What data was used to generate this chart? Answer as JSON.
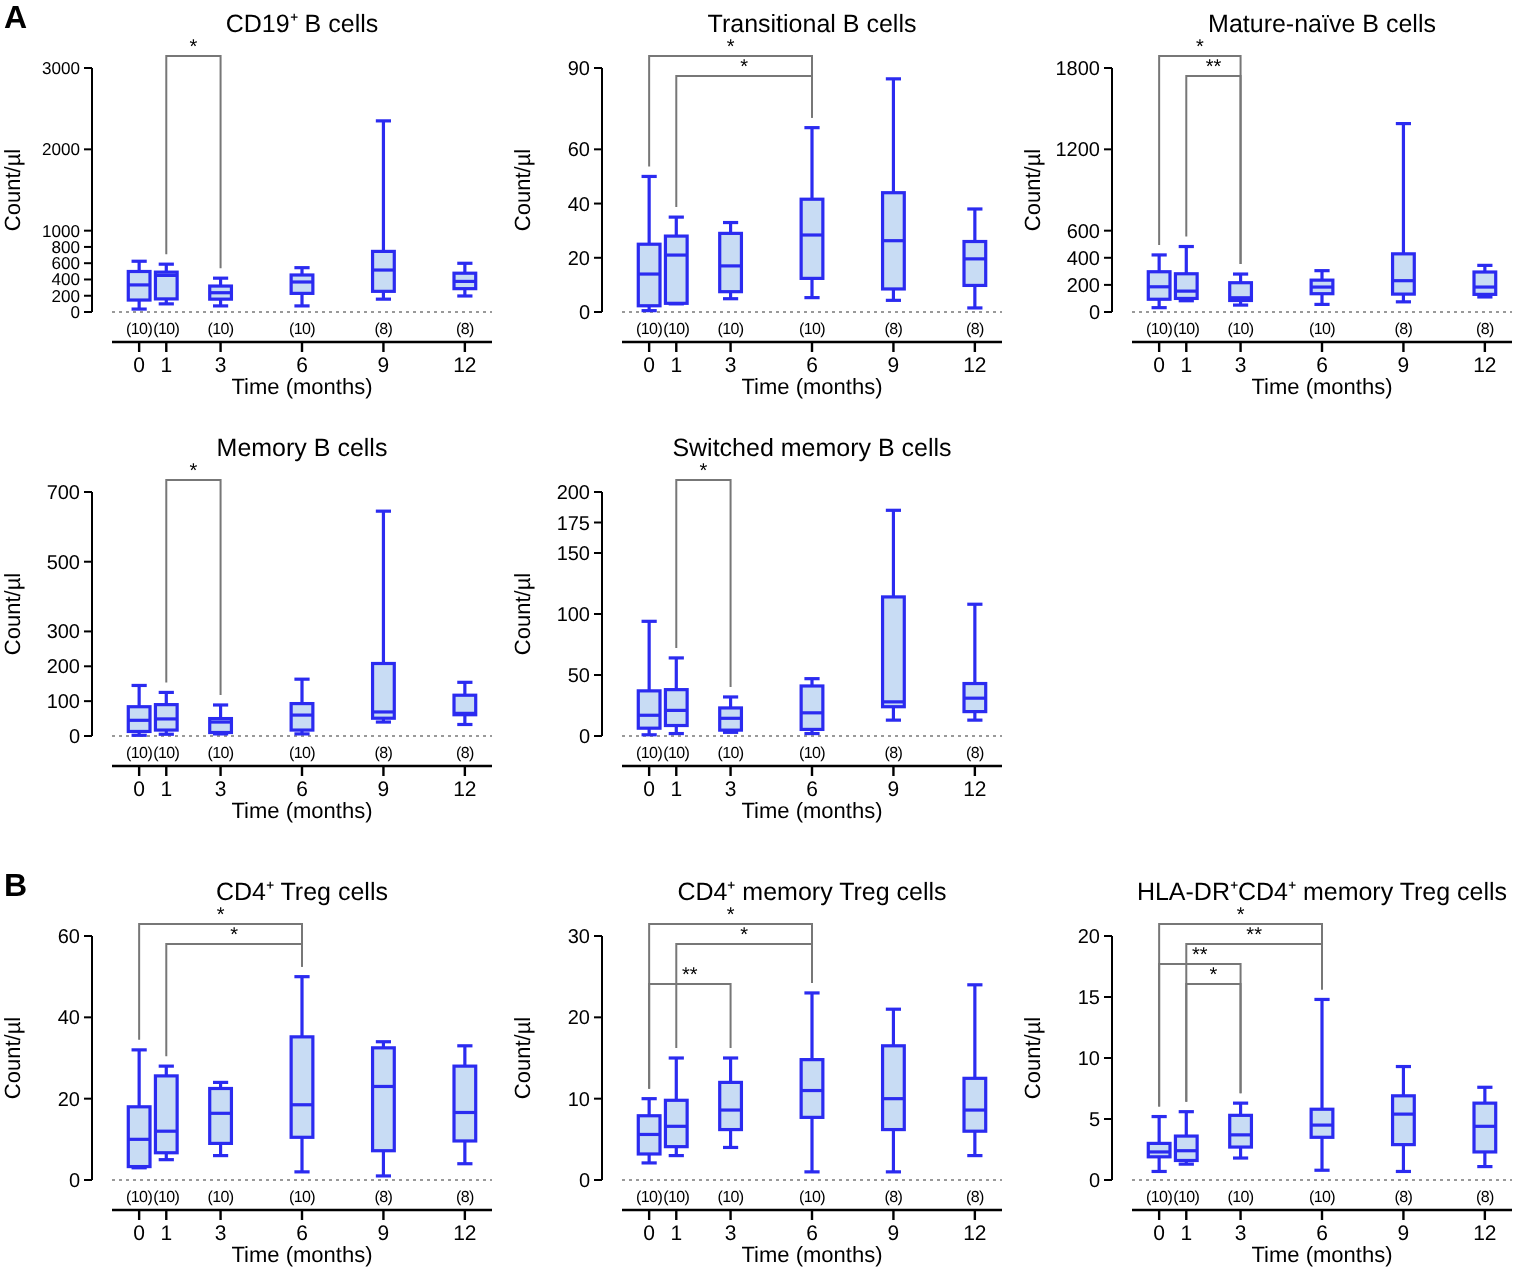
{
  "chart_data": [
    {
      "type": "box",
      "title": "CD19⁺ B cells",
      "ylabel": "Count/µl",
      "xlabel": "Time (months)",
      "x": [
        0,
        1,
        3,
        6,
        9,
        12
      ],
      "xlim": [
        -1,
        13
      ],
      "xticks": [
        0,
        1,
        3,
        6,
        9,
        12
      ],
      "ylim": [
        0,
        3000
      ],
      "yticks": [
        0,
        200,
        400,
        600,
        800,
        1000,
        2000,
        3000
      ],
      "series": [
        {
          "color": "#2b2bf0",
          "boxes": [
            {
              "low": 36,
              "q1": 147,
              "median": 333,
              "q3": 498,
              "high": 624
            },
            {
              "low": 100,
              "q1": 161,
              "median": 450,
              "q3": 490,
              "high": 588
            },
            {
              "low": 75,
              "q1": 158,
              "median": 237,
              "q3": 319,
              "high": 416
            },
            {
              "low": 75,
              "q1": 229,
              "median": 369,
              "q3": 455,
              "high": 545
            },
            {
              "low": 158,
              "q1": 254,
              "median": 516,
              "q3": 745,
              "high": 2350
            },
            {
              "low": 197,
              "q1": 287,
              "median": 376,
              "q3": 477,
              "high": 599
            }
          ]
        }
      ],
      "ref_lines": [
        {
          "axis": "y",
          "value": 0,
          "color": "#999999",
          "line_style": "dotted"
        }
      ],
      "annotations": [
        "A",
        "(10)",
        "(10)",
        "(10)",
        "(10)",
        "(8)",
        "(8)",
        "*"
      ]
    },
    {
      "type": "box",
      "title": "Transitional B cells",
      "ylabel": "Count/µl",
      "xlabel": "Time (months)",
      "x": [
        0,
        1,
        3,
        6,
        9,
        12
      ],
      "xlim": [
        -1,
        13
      ],
      "xticks": [
        0,
        1,
        3,
        6,
        9,
        12
      ],
      "ylim": [
        0,
        90
      ],
      "yticks": [
        0,
        20,
        40,
        60,
        90
      ],
      "series": [
        {
          "color": "#2b2bf0",
          "boxes": [
            {
              "low": 0.5,
              "q1": 2.3,
              "median": 14,
              "q3": 25,
              "high": 50
            },
            {
              "low": 3,
              "q1": 3.2,
              "median": 21,
              "q3": 28,
              "high": 35
            },
            {
              "low": 4.9,
              "q1": 7.5,
              "median": 17,
              "q3": 29,
              "high": 33
            },
            {
              "low": 5.3,
              "q1": 12.4,
              "median": 28.4,
              "q3": 41.6,
              "high": 68
            },
            {
              "low": 4.3,
              "q1": 8.5,
              "median": 26.3,
              "q3": 44,
              "high": 86
            },
            {
              "low": 1.5,
              "q1": 9.8,
              "median": 19.6,
              "q3": 26,
              "high": 38
            }
          ]
        }
      ],
      "ref_lines": [
        {
          "axis": "y",
          "value": 0,
          "color": "#999999",
          "line_style": "dotted"
        }
      ],
      "annotations": [
        "(10)",
        "(10)",
        "(10)",
        "(10)",
        "(8)",
        "(8)",
        "*",
        "*"
      ]
    },
    {
      "type": "box",
      "title": "Mature-naïve B cells",
      "ylabel": "Count/µl",
      "xlabel": "Time (months)",
      "x": [
        0,
        1,
        3,
        6,
        9,
        12
      ],
      "xlim": [
        -1,
        13
      ],
      "xticks": [
        0,
        1,
        3,
        6,
        9,
        12
      ],
      "ylim": [
        0,
        1800
      ],
      "yticks": [
        0,
        200,
        400,
        600,
        1200,
        1800
      ],
      "series": [
        {
          "color": "#2b2bf0",
          "boxes": [
            {
              "low": 32,
              "q1": 94,
              "median": 186,
              "q3": 297,
              "high": 421
            },
            {
              "low": 83,
              "q1": 100,
              "median": 154,
              "q3": 282,
              "high": 483
            },
            {
              "low": 51,
              "q1": 85,
              "median": 105,
              "q3": 216,
              "high": 280
            },
            {
              "low": 56,
              "q1": 135,
              "median": 184,
              "q3": 235,
              "high": 305
            },
            {
              "low": 75,
              "q1": 132,
              "median": 231,
              "q3": 429,
              "high": 1390
            },
            {
              "low": 111,
              "q1": 130,
              "median": 184,
              "q3": 295,
              "high": 344
            }
          ]
        }
      ],
      "ref_lines": [
        {
          "axis": "y",
          "value": 0,
          "color": "#999999",
          "line_style": "dotted"
        }
      ],
      "annotations": [
        "(10)",
        "(10)",
        "(10)",
        "(10)",
        "(8)",
        "(8)",
        "*",
        "**"
      ]
    },
    {
      "type": "box",
      "title": "Memory B cells",
      "ylabel": "Count/µl",
      "xlabel": "Time (months)",
      "x": [
        0,
        1,
        3,
        6,
        9,
        12
      ],
      "xlim": [
        -1,
        13
      ],
      "xticks": [
        0,
        1,
        3,
        6,
        9,
        12
      ],
      "ylim": [
        0,
        700
      ],
      "yticks": [
        0,
        100,
        200,
        300,
        500,
        700
      ],
      "series": [
        {
          "color": "#2b2bf0",
          "boxes": [
            {
              "low": 2,
              "q1": 13,
              "median": 45,
              "q3": 84,
              "high": 145
            },
            {
              "low": 5,
              "q1": 17,
              "median": 49,
              "q3": 90,
              "high": 125
            },
            {
              "low": 6,
              "q1": 10,
              "median": 40,
              "q3": 50,
              "high": 89
            },
            {
              "low": 6,
              "q1": 17,
              "median": 60,
              "q3": 93,
              "high": 163
            },
            {
              "low": 40,
              "q1": 51,
              "median": 69,
              "q3": 208,
              "high": 645
            },
            {
              "low": 33,
              "q1": 61,
              "median": 65,
              "q3": 117,
              "high": 154
            }
          ]
        }
      ],
      "ref_lines": [
        {
          "axis": "y",
          "value": 0,
          "color": "#999999",
          "line_style": "dotted"
        }
      ],
      "annotations": [
        "(10)",
        "(10)",
        "(10)",
        "(10)",
        "(8)",
        "(8)",
        "*"
      ]
    },
    {
      "type": "box",
      "title": "Switched memory B cells",
      "ylabel": "Count/µl",
      "xlabel": "Time (months)",
      "x": [
        0,
        1,
        3,
        6,
        9,
        12
      ],
      "xlim": [
        -1,
        13
      ],
      "xticks": [
        0,
        1,
        3,
        6,
        9,
        12
      ],
      "ylim": [
        0,
        200
      ],
      "yticks": [
        0,
        50,
        100,
        150,
        175,
        200
      ],
      "series": [
        {
          "color": "#2b2bf0",
          "boxes": [
            {
              "low": 1,
              "q1": 6.4,
              "median": 17,
              "q3": 37,
              "high": 94
            },
            {
              "low": 2,
              "q1": 8.6,
              "median": 21,
              "q3": 38,
              "high": 64
            },
            {
              "low": 3,
              "q1": 4.8,
              "median": 14.5,
              "q3": 23,
              "high": 32
            },
            {
              "low": 2,
              "q1": 5.4,
              "median": 19,
              "q3": 41,
              "high": 47
            },
            {
              "low": 13,
              "q1": 24,
              "median": 28,
              "q3": 114,
              "high": 185
            },
            {
              "low": 13,
              "q1": 20,
              "median": 31,
              "q3": 43,
              "high": 108
            }
          ]
        }
      ],
      "ref_lines": [
        {
          "axis": "y",
          "value": 0,
          "color": "#999999",
          "line_style": "dotted"
        }
      ],
      "annotations": [
        "(10)",
        "(10)",
        "(10)",
        "(10)",
        "(8)",
        "(8)",
        "*"
      ]
    },
    {
      "type": "box",
      "title": "CD4⁺ Treg cells",
      "ylabel": "Count/µl",
      "xlabel": "Time (months)",
      "x": [
        0,
        1,
        3,
        6,
        9,
        12
      ],
      "xlim": [
        -1,
        13
      ],
      "xticks": [
        0,
        1,
        3,
        6,
        9,
        12
      ],
      "ylim": [
        0,
        60
      ],
      "yticks": [
        0,
        20,
        40,
        60
      ],
      "series": [
        {
          "color": "#2b2bf0",
          "boxes": [
            {
              "low": 3,
              "q1": 3.3,
              "median": 10,
              "q3": 18,
              "high": 32
            },
            {
              "low": 5,
              "q1": 6.7,
              "median": 12,
              "q3": 25.6,
              "high": 28
            },
            {
              "low": 6,
              "q1": 9,
              "median": 16.4,
              "q3": 22.5,
              "high": 24
            },
            {
              "low": 2,
              "q1": 10.5,
              "median": 18.5,
              "q3": 35.2,
              "high": 50
            },
            {
              "low": 1,
              "q1": 7.2,
              "median": 23,
              "q3": 32.5,
              "high": 34
            },
            {
              "low": 4,
              "q1": 9.6,
              "median": 16.6,
              "q3": 28,
              "high": 33
            }
          ]
        }
      ],
      "ref_lines": [
        {
          "axis": "y",
          "value": 0,
          "color": "#999999",
          "line_style": "dotted"
        }
      ],
      "annotations": [
        "B",
        "(10)",
        "(10)",
        "(10)",
        "(10)",
        "(8)",
        "(8)",
        "*",
        "*"
      ]
    },
    {
      "type": "box",
      "title": "CD4⁺ memory Treg cells",
      "ylabel": "Count/µl",
      "xlabel": "Time (months)",
      "x": [
        0,
        1,
        3,
        6,
        9,
        12
      ],
      "xlim": [
        -1,
        13
      ],
      "xticks": [
        0,
        1,
        3,
        6,
        9,
        12
      ],
      "ylim": [
        0,
        30
      ],
      "yticks": [
        0,
        10,
        20,
        30
      ],
      "series": [
        {
          "color": "#2b2bf0",
          "boxes": [
            {
              "low": 2.1,
              "q1": 3.2,
              "median": 5.6,
              "q3": 7.9,
              "high": 10
            },
            {
              "low": 3,
              "q1": 4.1,
              "median": 6.6,
              "q3": 9.8,
              "high": 15
            },
            {
              "low": 4,
              "q1": 6.2,
              "median": 8.6,
              "q3": 12,
              "high": 15
            },
            {
              "low": 1,
              "q1": 7.7,
              "median": 11,
              "q3": 14.8,
              "high": 23
            },
            {
              "low": 1,
              "q1": 6.2,
              "median": 10,
              "q3": 16.5,
              "high": 21
            },
            {
              "low": 3,
              "q1": 6,
              "median": 8.6,
              "q3": 12.5,
              "high": 24
            }
          ]
        }
      ],
      "ref_lines": [
        {
          "axis": "y",
          "value": 0,
          "color": "#999999",
          "line_style": "dotted"
        }
      ],
      "annotations": [
        "(10)",
        "(10)",
        "(10)",
        "(10)",
        "(8)",
        "(8)",
        "*",
        "*",
        "**"
      ]
    },
    {
      "type": "box",
      "title": "HLA-DR⁺CD4⁺ memory Treg cells",
      "ylabel": "Count/µl",
      "xlabel": "Time (months)",
      "x": [
        0,
        1,
        3,
        6,
        9,
        12
      ],
      "xlim": [
        -1,
        13
      ],
      "xticks": [
        0,
        1,
        3,
        6,
        9,
        12
      ],
      "ylim": [
        0,
        20
      ],
      "yticks": [
        0,
        5,
        10,
        15,
        20
      ],
      "series": [
        {
          "color": "#2b2bf0",
          "boxes": [
            {
              "low": 0.7,
              "q1": 1.9,
              "median": 2.3,
              "q3": 3,
              "high": 5.2
            },
            {
              "low": 1.3,
              "q1": 1.6,
              "median": 2.4,
              "q3": 3.6,
              "high": 5.6
            },
            {
              "low": 1.8,
              "q1": 2.7,
              "median": 3.7,
              "q3": 5.3,
              "high": 6.3
            },
            {
              "low": 0.8,
              "q1": 3.5,
              "median": 4.5,
              "q3": 5.8,
              "high": 14.8
            },
            {
              "low": 0.7,
              "q1": 2.9,
              "median": 5.4,
              "q3": 6.9,
              "high": 9.3
            },
            {
              "low": 1.1,
              "q1": 2.3,
              "median": 4.4,
              "q3": 6.3,
              "high": 7.6
            }
          ]
        }
      ],
      "ref_lines": [
        {
          "axis": "y",
          "value": 0,
          "color": "#999999",
          "line_style": "dotted"
        }
      ],
      "annotations": [
        "(10)",
        "(10)",
        "(10)",
        "(10)",
        "(8)",
        "(8)",
        "*",
        "**",
        "**",
        "*"
      ]
    }
  ]
}
